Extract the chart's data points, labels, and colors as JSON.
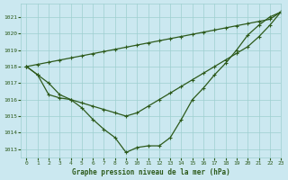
{
  "title": "Graphe pression niveau de la mer (hPa)",
  "bg_color": "#cbe8f0",
  "grid_color": "#9ecfcf",
  "line_color": "#2d5a1b",
  "xlim": [
    -0.5,
    23
  ],
  "ylim": [
    1012.5,
    1021.8
  ],
  "yticks": [
    1013,
    1014,
    1015,
    1016,
    1017,
    1018,
    1019,
    1020,
    1021
  ],
  "xticks": [
    0,
    1,
    2,
    3,
    4,
    5,
    6,
    7,
    8,
    9,
    10,
    11,
    12,
    13,
    14,
    15,
    16,
    17,
    18,
    19,
    20,
    21,
    22,
    23
  ],
  "series_curve": [
    1018.0,
    1017.5,
    1017.0,
    1016.3,
    1016.0,
    1015.5,
    1014.8,
    1014.2,
    1013.7,
    1012.8,
    1013.1,
    1013.2,
    1013.2,
    1013.7,
    1014.8,
    1016.0,
    1016.7,
    1017.5,
    1018.2,
    1019.0,
    1019.9,
    1020.5,
    1021.0,
    1021.3
  ],
  "series_straight1": [
    1018.0,
    1018.13,
    1018.26,
    1018.39,
    1018.52,
    1018.65,
    1018.78,
    1018.91,
    1019.04,
    1019.17,
    1019.3,
    1019.43,
    1019.56,
    1019.69,
    1019.82,
    1019.95,
    1020.08,
    1020.21,
    1020.34,
    1020.47,
    1020.6,
    1020.73,
    1020.86,
    1021.3
  ],
  "series_straight2": [
    1018.0,
    1017.5,
    1016.3,
    1016.1,
    1016.0,
    1015.8,
    1015.6,
    1015.4,
    1015.2,
    1015.0,
    1015.2,
    1015.6,
    1016.0,
    1016.4,
    1016.8,
    1017.2,
    1017.6,
    1018.0,
    1018.4,
    1018.8,
    1019.2,
    1019.8,
    1020.5,
    1021.3
  ]
}
